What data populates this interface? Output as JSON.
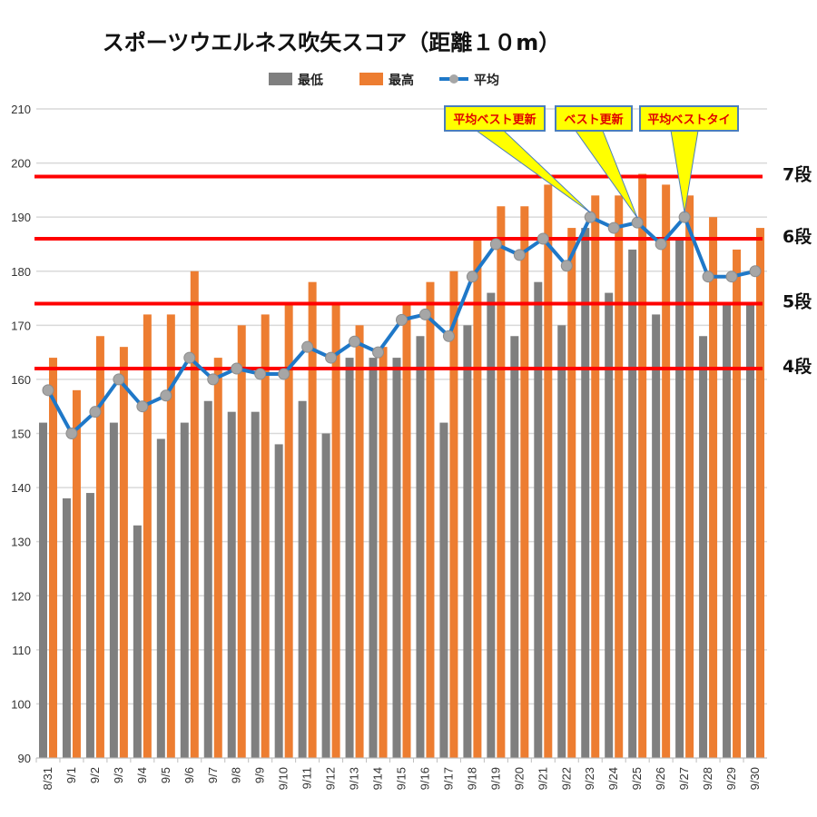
{
  "colors": {
    "min": "#7f7f7f",
    "max": "#ed7d31",
    "avg_line": "#1f78c8",
    "avg_marker": "#a6a6a6",
    "threshold": "#ff0000",
    "callout_fill": "#ffff00",
    "callout_border": "#4a7ebb",
    "grid": "#d9d9d9"
  },
  "chart_data": {
    "type": "bar",
    "title": "スポーツウエルネス吹矢スコア（距離１０m）",
    "categories": [
      "8/31",
      "9/1",
      "9/2",
      "9/3",
      "9/4",
      "9/5",
      "9/6",
      "9/7",
      "9/8",
      "9/9",
      "9/10",
      "9/11",
      "9/12",
      "9/13",
      "9/14",
      "9/15",
      "9/16",
      "9/17",
      "9/18",
      "9/19",
      "9/20",
      "9/21",
      "9/22",
      "9/23",
      "9/24",
      "9/25",
      "9/26",
      "9/27",
      "9/28",
      "9/29",
      "9/30"
    ],
    "series": [
      {
        "name": "最低",
        "kind": "bar",
        "values": [
          152,
          138,
          139,
          152,
          133,
          149,
          152,
          156,
          154,
          154,
          148,
          156,
          150,
          164,
          164,
          164,
          168,
          152,
          170,
          176,
          168,
          178,
          170,
          188,
          176,
          184,
          172,
          186,
          168,
          174,
          174
        ]
      },
      {
        "name": "最高",
        "kind": "bar",
        "values": [
          164,
          158,
          168,
          166,
          172,
          172,
          180,
          164,
          170,
          172,
          174,
          178,
          174,
          170,
          166,
          174,
          178,
          180,
          186,
          192,
          192,
          196,
          188,
          194,
          194,
          198,
          196,
          194,
          190,
          184,
          188
        ]
      },
      {
        "name": "平均",
        "kind": "line",
        "values": [
          158,
          150,
          154,
          160,
          155,
          157,
          164,
          160,
          162,
          161,
          161,
          166,
          164,
          167,
          165,
          171,
          172,
          168,
          179,
          185,
          183,
          186,
          181,
          190,
          188,
          189,
          185,
          190,
          179,
          179,
          180
        ]
      }
    ],
    "ylim": [
      90,
      210
    ],
    "yticks": [
      90,
      100,
      110,
      120,
      130,
      140,
      150,
      160,
      170,
      180,
      190,
      200,
      210
    ],
    "grid": true,
    "legend_position": "top",
    "thresholds": [
      {
        "label": "7段",
        "value": 197.5
      },
      {
        "label": "6段",
        "value": 186
      },
      {
        "label": "5段",
        "value": 174
      },
      {
        "label": "4段",
        "value": 162
      }
    ],
    "annotations": [
      {
        "text": "平均ベスト更新",
        "target": "9/23"
      },
      {
        "text": "ベスト更新",
        "target": "9/25"
      },
      {
        "text": "平均ベストタイ",
        "target": "9/27"
      }
    ]
  }
}
